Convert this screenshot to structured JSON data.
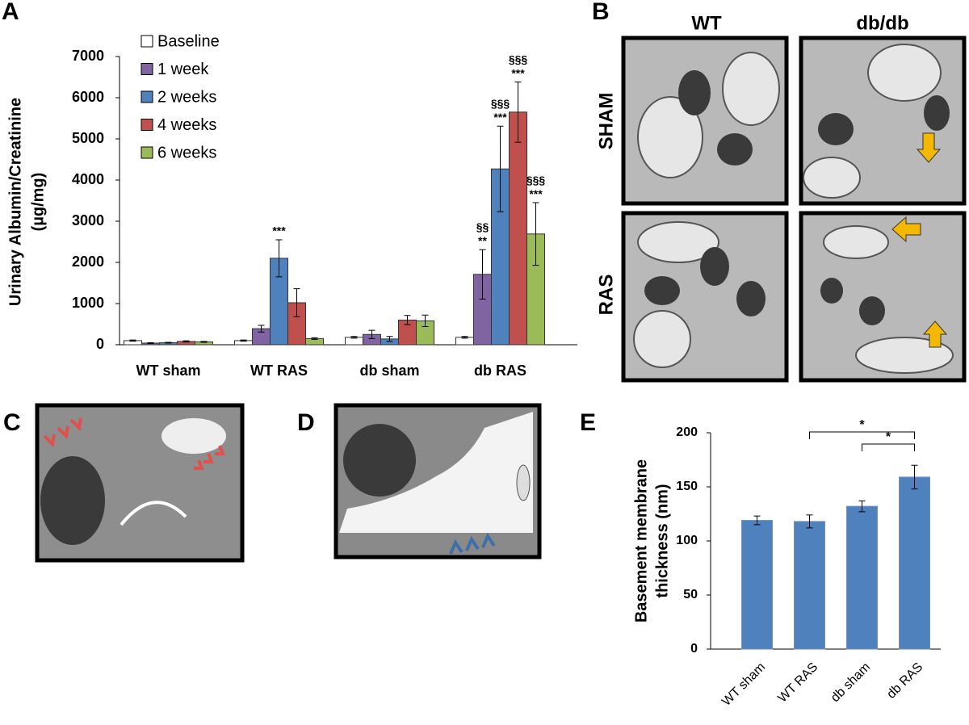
{
  "figure": {
    "panel_labels": [
      "A",
      "B",
      "C",
      "D",
      "E"
    ],
    "micrograph_columns": [
      "WT",
      "db/db"
    ],
    "micrograph_rows": [
      "SHAM",
      "RAS"
    ]
  },
  "chart_data": [
    {
      "type": "bar",
      "ylabel": [
        "Urinary Albumin/Creatinine",
        "(µg/mg)"
      ],
      "categories": [
        "WT sham",
        "WT RAS",
        "db sham",
        "db RAS"
      ],
      "series": [
        {
          "name": "Baseline",
          "color": "#ffffff",
          "values": [
            100,
            100,
            180,
            180
          ],
          "errors": [
            15,
            15,
            20,
            20
          ]
        },
        {
          "name": "1 week",
          "color": "#8064a2",
          "values": [
            40,
            390,
            250,
            1710
          ],
          "errors": [
            10,
            80,
            100,
            600
          ]
        },
        {
          "name": "2 weeks",
          "color": "#4f81bd",
          "values": [
            50,
            2100,
            140,
            4270
          ],
          "errors": [
            10,
            450,
            60,
            1040
          ]
        },
        {
          "name": "4 weeks",
          "color": "#c0504d",
          "values": [
            80,
            1020,
            600,
            5650
          ],
          "errors": [
            15,
            340,
            110,
            730
          ]
        },
        {
          "name": "6 weeks",
          "color": "#9bbb59",
          "values": [
            70,
            150,
            580,
            2690
          ],
          "errors": [
            10,
            20,
            140,
            760
          ]
        }
      ],
      "ylim": [
        0,
        7000
      ],
      "yticks": [
        0,
        1000,
        2000,
        3000,
        4000,
        5000,
        6000,
        7000
      ],
      "annotations": [
        {
          "text": [
            "***"
          ],
          "series": 2,
          "category": 1
        },
        {
          "text": [
            "§§",
            "**"
          ],
          "series": 1,
          "category": 3
        },
        {
          "text": [
            "§§§",
            "***"
          ],
          "series": 2,
          "category": 3
        },
        {
          "text": [
            "§§§",
            "***"
          ],
          "series": 3,
          "category": 3
        },
        {
          "text": [
            "§§§",
            "***"
          ],
          "series": 4,
          "category": 3
        }
      ]
    },
    {
      "type": "bar",
      "ylabel": [
        "Basement membrane",
        "thickness (nm)"
      ],
      "categories": [
        "WT sham",
        "WT RAS",
        "db sham",
        "db RAS"
      ],
      "series": [
        {
          "color": "#4f81bd",
          "values": [
            119,
            118,
            132,
            159
          ],
          "errors": [
            4,
            6,
            5,
            11
          ]
        }
      ],
      "ylim": [
        0,
        200
      ],
      "yticks": [
        0,
        50,
        100,
        150,
        200
      ],
      "significance": [
        {
          "from": 1,
          "to": 3,
          "text": "*"
        },
        {
          "from": 2,
          "to": 3,
          "text": "*"
        }
      ]
    }
  ]
}
